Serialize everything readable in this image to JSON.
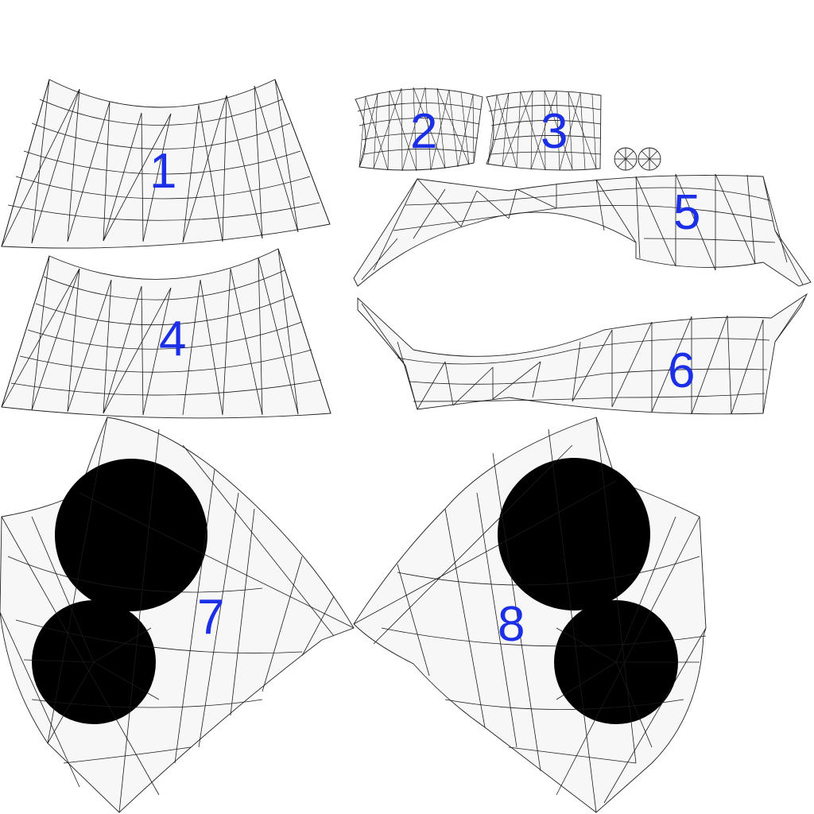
{
  "background_color": "#ffffff",
  "mesh_fill_color": "#f7f7f7",
  "wire_color": "#1a1a1a",
  "label_color": "#1a2fe6",
  "islands": [
    {
      "id": "1",
      "label": "1"
    },
    {
      "id": "2",
      "label": "2"
    },
    {
      "id": "3",
      "label": "3"
    },
    {
      "id": "4",
      "label": "4"
    },
    {
      "id": "5",
      "label": "5"
    },
    {
      "id": "6",
      "label": "6"
    },
    {
      "id": "7",
      "label": "7"
    },
    {
      "id": "8",
      "label": "8"
    }
  ]
}
